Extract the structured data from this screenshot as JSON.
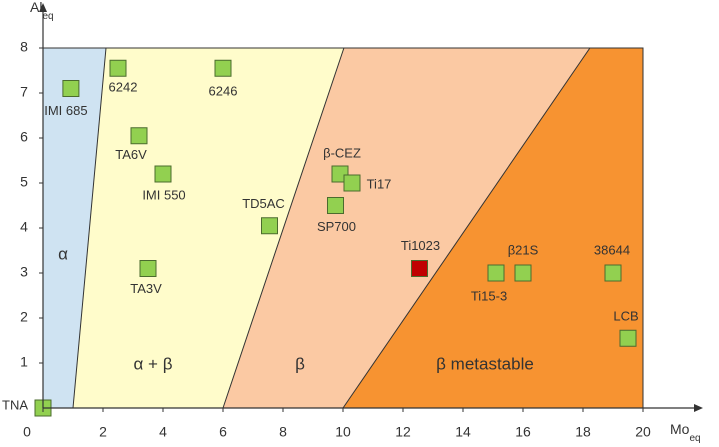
{
  "chart_data": {
    "type": "scatter",
    "xlabel": "Mo",
    "xlabel_sub": "eq",
    "ylabel": "Al",
    "ylabel_sub": "eq",
    "xlim": [
      0,
      20
    ],
    "ylim": [
      0,
      8
    ],
    "xticks": [
      0,
      2,
      4,
      6,
      8,
      10,
      12,
      14,
      16,
      18,
      20
    ],
    "yticks": [
      1,
      2,
      3,
      4,
      5,
      6,
      7,
      8
    ],
    "regions": [
      {
        "label": "α",
        "color": "#cfe3f2"
      },
      {
        "label": "α + β",
        "color": "#fffccb"
      },
      {
        "label": "β",
        "color": "#fbc9a3"
      },
      {
        "label": "β metastable",
        "color": "#f79331"
      }
    ],
    "boundaries": [
      [
        1,
        2.1
      ],
      [
        6,
        10.03
      ],
      [
        10,
        18.23
      ]
    ],
    "labels": [
      "IMI 685",
      "6242",
      "6246",
      "TA6V",
      "IMI 550",
      "TA3V",
      "TD5AC",
      "β-CEZ",
      "Ti17",
      "SP700",
      "Ti1023",
      "Ti15-3",
      "β21S",
      "38644",
      "LCB",
      "TNA"
    ],
    "x": [
      0.93,
      2.5,
      6.0,
      3.2,
      4.0,
      3.5,
      7.55,
      9.9,
      10.3,
      9.75,
      12.55,
      15.1,
      16.0,
      19.0,
      19.5,
      0
    ],
    "y": [
      7.1,
      7.55,
      7.55,
      6.05,
      5.2,
      3.1,
      4.05,
      5.2,
      5.0,
      4.5,
      3.1,
      3.0,
      3.0,
      3.0,
      1.55,
      0
    ],
    "colors": [
      "#92d050",
      "#92d050",
      "#92d050",
      "#92d050",
      "#92d050",
      "#92d050",
      "#92d050",
      "#92d050",
      "#92d050",
      "#92d050",
      "#c00000",
      "#92d050",
      "#92d050",
      "#92d050",
      "#92d050",
      "#92d050"
    ]
  }
}
